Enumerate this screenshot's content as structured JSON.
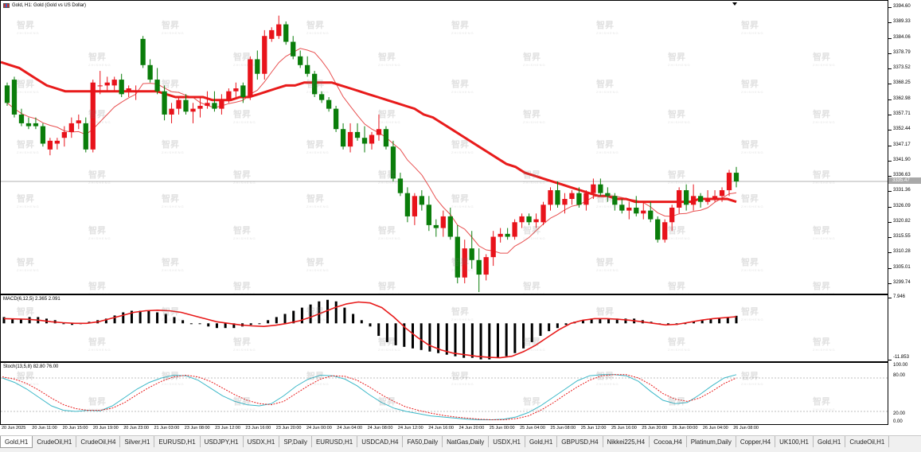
{
  "window": {
    "title": "Gold, H1:  Gold (Gold vs US Dollar)"
  },
  "main_chart": {
    "current_price_label": "3335.47",
    "price_labels": [
      "3394.60",
      "3389.33",
      "3384.06",
      "3378.79",
      "3373.52",
      "3368.25",
      "3362.98",
      "3357.71",
      "3352.44",
      "3347.17",
      "3341.90",
      "3336.63",
      "3331.36",
      "3326.09",
      "3320.82",
      "3315.55",
      "3310.28",
      "3305.01",
      "3299.74"
    ]
  },
  "macd": {
    "label": "MACD(6,12,5) 2.365 2.091",
    "axis_labels": [
      "7.946",
      "-11.853"
    ]
  },
  "stoch": {
    "label": "Stoch(13,5,8) 82.80 76.00",
    "axis_labels": [
      "100.00",
      "80.00",
      "20.00",
      "0.00"
    ]
  },
  "time_axis": [
    "20 Jun 2025",
    "20 Jun 11:00",
    "20 Jun 15:00",
    "20 Jun 19:00",
    "20 Jun 23:00",
    "21 Jun 03:00",
    "23 Jun 08:00",
    "23 Jun 12:00",
    "23 Jun 16:00",
    "23 Jun 20:00",
    "24 Jun 00:00",
    "24 Jun 04:00",
    "24 Jun 08:00",
    "24 Jun 12:00",
    "24 Jun 16:00",
    "24 Jun 20:00",
    "25 Jun 00:00",
    "25 Jun 04:00",
    "25 Jun 08:00",
    "25 Jun 12:00",
    "25 Jun 16:00",
    "25 Jun 20:00",
    "26 Jun 00:00",
    "26 Jun 04:00",
    "26 Jun 08:00"
  ],
  "tabs": [
    "Gold,H1",
    "CrudeOil,H1",
    "CrudeOil,H4",
    "Silver,H1",
    "EURUSD,H1",
    "USDJPY,H1",
    "USDX,H1",
    "SP,Daily",
    "EURUSD,H1",
    "USDCAD,H4",
    "FA50,Daily",
    "NatGas,Daily",
    "USDX,H1",
    "Gold,H1",
    "GBPUSD,H4",
    "Nikkei225,H4",
    "Cocoa,H4",
    "Platinum,Daily",
    "Copper,H4",
    "UK100,H1",
    "Gold,H1",
    "CrudeOil,H1"
  ],
  "watermark_text": "智昇",
  "watermark_sub": "ZHISHENG",
  "colors": {
    "bull": "#e8131b",
    "bear": "#0a7d0a",
    "ma_slow": "#e81b1b",
    "ma_fast": "#e85050",
    "macd_signal": "#e81b1b",
    "stoch_main": "#3cb8c8",
    "stoch_signal": "#e81b1b"
  },
  "chart_data": {
    "type": "candlestick",
    "symbol": "Gold",
    "timeframe": "H1",
    "ylim": [
      3297,
      3396
    ],
    "candles": [
      [
        3368,
        3369,
        3361,
        3362
      ],
      [
        3370,
        3371,
        3357,
        3358
      ],
      [
        3358,
        3360,
        3354,
        3355
      ],
      [
        3355,
        3357,
        3353,
        3354
      ],
      [
        3355,
        3357,
        3353,
        3354
      ],
      [
        3354,
        3355,
        3347,
        3348
      ],
      [
        3346,
        3350,
        3344,
        3349
      ],
      [
        3348,
        3350,
        3346,
        3349
      ],
      [
        3350,
        3354,
        3347,
        3352
      ],
      [
        3352,
        3357,
        3350,
        3355
      ],
      [
        3355,
        3358,
        3353,
        3356
      ],
      [
        3355,
        3357,
        3345,
        3346
      ],
      [
        3346,
        3370,
        3345,
        3369
      ],
      [
        3368,
        3373,
        3365,
        3368
      ],
      [
        3368,
        3371,
        3366,
        3369
      ],
      [
        3368,
        3371,
        3366,
        3370
      ],
      [
        3370,
        3372,
        3364,
        3365
      ],
      [
        3366,
        3368,
        3364,
        3367
      ],
      [
        3366,
        3368,
        3363,
        3366
      ],
      [
        3384,
        3385,
        3374,
        3375
      ],
      [
        3375,
        3377,
        3369,
        3370
      ],
      [
        3370,
        3374,
        3365,
        3366
      ],
      [
        3366,
        3368,
        3356,
        3358
      ],
      [
        3358,
        3362,
        3355,
        3360
      ],
      [
        3360,
        3364,
        3358,
        3363
      ],
      [
        3363,
        3365,
        3358,
        3359
      ],
      [
        3359,
        3362,
        3355,
        3360
      ],
      [
        3360,
        3364,
        3357,
        3361
      ],
      [
        3361,
        3366,
        3360,
        3362
      ],
      [
        3362,
        3366,
        3359,
        3360
      ],
      [
        3360,
        3365,
        3358,
        3363
      ],
      [
        3363,
        3367,
        3362,
        3366
      ],
      [
        3366,
        3369,
        3364,
        3367
      ],
      [
        3368,
        3369,
        3362,
        3364
      ],
      [
        3364,
        3378,
        3363,
        3377
      ],
      [
        3377,
        3380,
        3370,
        3372
      ],
      [
        3372,
        3387,
        3370,
        3385
      ],
      [
        3384,
        3388,
        3383,
        3387
      ],
      [
        3385,
        3392,
        3384,
        3389
      ],
      [
        3389,
        3390,
        3382,
        3383
      ],
      [
        3383,
        3385,
        3377,
        3378
      ],
      [
        3378,
        3380,
        3374,
        3375
      ],
      [
        3375,
        3378,
        3371,
        3372
      ],
      [
        3372,
        3373,
        3364,
        3365
      ],
      [
        3365,
        3366,
        3362,
        3363
      ],
      [
        3363,
        3364,
        3359,
        3360
      ],
      [
        3360,
        3361,
        3352,
        3353
      ],
      [
        3353,
        3355,
        3346,
        3347
      ],
      [
        3347,
        3355,
        3345,
        3352
      ],
      [
        3352,
        3355,
        3349,
        3350
      ],
      [
        3350,
        3354,
        3345,
        3348
      ],
      [
        3348,
        3352,
        3346,
        3351
      ],
      [
        3351,
        3358,
        3349,
        3353
      ],
      [
        3353,
        3354,
        3346,
        3347
      ],
      [
        3347,
        3349,
        3335,
        3336
      ],
      [
        3336,
        3338,
        3330,
        3331
      ],
      [
        3331,
        3333,
        3321,
        3323
      ],
      [
        3323,
        3331,
        3320,
        3330
      ],
      [
        3330,
        3332,
        3325,
        3327
      ],
      [
        3327,
        3330,
        3318,
        3320
      ],
      [
        3320,
        3322,
        3316,
        3319
      ],
      [
        3319,
        3325,
        3316,
        3323
      ],
      [
        3323,
        3326,
        3315,
        3316
      ],
      [
        3316,
        3320,
        3300,
        3302
      ],
      [
        3302,
        3315,
        3300,
        3312
      ],
      [
        3312,
        3318,
        3305,
        3308
      ],
      [
        3308,
        3312,
        3297,
        3303
      ],
      [
        3303,
        3310,
        3301,
        3309
      ],
      [
        3309,
        3318,
        3306,
        3316
      ],
      [
        3316,
        3319,
        3314,
        3317
      ],
      [
        3317,
        3319,
        3315,
        3316
      ],
      [
        3316,
        3322,
        3315,
        3321
      ],
      [
        3321,
        3324,
        3319,
        3323
      ],
      [
        3323,
        3324,
        3320,
        3321
      ],
      [
        3321,
        3324,
        3319,
        3322
      ],
      [
        3321,
        3328,
        3320,
        3327
      ],
      [
        3327,
        3333,
        3325,
        3332
      ],
      [
        3332,
        3335,
        3326,
        3327
      ],
      [
        3327,
        3331,
        3324,
        3329
      ],
      [
        3329,
        3332,
        3327,
        3331
      ],
      [
        3331,
        3333,
        3326,
        3327
      ],
      [
        3327,
        3332,
        3325,
        3331
      ],
      [
        3331,
        3336,
        3329,
        3334
      ],
      [
        3334,
        3336,
        3330,
        3331
      ],
      [
        3331,
        3333,
        3328,
        3330
      ],
      [
        3330,
        3331,
        3325,
        3327
      ],
      [
        3327,
        3329,
        3324,
        3325
      ],
      [
        3325,
        3328,
        3322,
        3326
      ],
      [
        3326,
        3330,
        3323,
        3324
      ],
      [
        3324,
        3328,
        3322,
        3325
      ],
      [
        3325,
        3328,
        3321,
        3322
      ],
      [
        3322,
        3323,
        3314,
        3315
      ],
      [
        3315,
        3322,
        3314,
        3321
      ],
      [
        3321,
        3327,
        3318,
        3326
      ],
      [
        3326,
        3333,
        3324,
        3332
      ],
      [
        3332,
        3334,
        3325,
        3327
      ],
      [
        3327,
        3334,
        3325,
        3330
      ],
      [
        3330,
        3331,
        3326,
        3328
      ],
      [
        3328,
        3332,
        3327,
        3329
      ],
      [
        3329,
        3332,
        3328,
        3330
      ],
      [
        3330,
        3333,
        3328,
        3332
      ],
      [
        3332,
        3339,
        3330,
        3338
      ],
      [
        3338,
        3340,
        3333,
        3335
      ]
    ],
    "ma_slow": [
      3376,
      3375,
      3374,
      3372,
      3370,
      3368,
      3367,
      3366,
      3366,
      3366,
      3366,
      3366,
      3366,
      3366,
      3366,
      3366,
      3366,
      3366,
      3365,
      3364,
      3364,
      3364,
      3364,
      3363,
      3363,
      3363,
      3364,
      3364,
      3365,
      3366,
      3367,
      3368,
      3368,
      3369,
      3369,
      3369,
      3369,
      3368,
      3367,
      3366,
      3365,
      3364,
      3363,
      3362,
      3361,
      3360,
      3358,
      3357,
      3355,
      3353,
      3351,
      3349,
      3347,
      3345,
      3343,
      3341,
      3340,
      3338,
      3337,
      3336,
      3335,
      3334,
      3333,
      3332,
      3331,
      3330,
      3330,
      3329,
      3329,
      3328,
      3328,
      3328,
      3328,
      3328,
      3328,
      3328,
      3329,
      3329,
      3329,
      3329,
      3328
    ],
    "macd_hist": [
      2,
      1.5,
      1.5,
      2,
      2,
      1.5,
      1,
      0,
      -0.5,
      0,
      0.5,
      1,
      1.5,
      2.5,
      3.5,
      4,
      4,
      4,
      3.5,
      3,
      2,
      1,
      0,
      0,
      -1,
      -1.5,
      -1.5,
      -1.5,
      -1,
      -0.5,
      0,
      1,
      2,
      3,
      4,
      5,
      6,
      7,
      7.5,
      7,
      5,
      3,
      1,
      -1,
      -4,
      -6,
      -7,
      -7.5,
      -8,
      -8.5,
      -9,
      -9.5,
      -10,
      -10.5,
      -11,
      -11,
      -11.5,
      -11.5,
      -11,
      -10.5,
      -9.5,
      -8,
      -6,
      -4,
      -2.5,
      -1.5,
      -0.5,
      0.5,
      1,
      1.5,
      1.5,
      1.5,
      1.5,
      1.5,
      1.5,
      1,
      0.5,
      0,
      -0.5,
      -0.5,
      0,
      0.5,
      1,
      1.5,
      1.5,
      2,
      2.4
    ],
    "macd_signal": [
      1.5,
      1.4,
      1.3,
      1.0,
      0.5,
      0.2,
      0,
      0,
      0.5,
      1.5,
      2.5,
      3.5,
      4,
      4.2,
      4,
      3.5,
      2.5,
      1.5,
      0.5,
      0,
      -0.5,
      -0.8,
      -1,
      -0.6,
      0,
      0.8,
      2,
      3.5,
      5,
      6.2,
      6.8,
      6.5,
      5,
      2,
      -1.5,
      -4.5,
      -7,
      -8.5,
      -9.5,
      -10,
      -10.5,
      -10.8,
      -11,
      -10.5,
      -9,
      -7,
      -4.5,
      -2,
      0,
      1,
      1.5,
      1.5,
      1.3,
      1,
      0.5,
      0,
      -0.5,
      -0.3,
      0.3,
      1,
      1.5,
      1.8,
      2.1
    ],
    "stoch_main": [
      80,
      72,
      60,
      45,
      30,
      22,
      20,
      22,
      21,
      30,
      45,
      60,
      72,
      80,
      85,
      84,
      76,
      62,
      48,
      38,
      32,
      30,
      34,
      48,
      65,
      78,
      85,
      84,
      78,
      66,
      50,
      36,
      26,
      20,
      16,
      12,
      10,
      8,
      6,
      5,
      5,
      6,
      10,
      18,
      30,
      45,
      60,
      75,
      84,
      86,
      86,
      84,
      74,
      56,
      40,
      34,
      36,
      50,
      66,
      80,
      86
    ],
    "stoch_signal": [
      82,
      78,
      70,
      58,
      44,
      32,
      25,
      22,
      22,
      26,
      36,
      50,
      63,
      74,
      82,
      85,
      82,
      74,
      62,
      50,
      40,
      34,
      32,
      38,
      52,
      66,
      78,
      84,
      83,
      76,
      64,
      50,
      38,
      28,
      22,
      17,
      13,
      10,
      8,
      6,
      5,
      5,
      7,
      12,
      22,
      35,
      50,
      64,
      76,
      84,
      86,
      86,
      80,
      68,
      52,
      42,
      38,
      44,
      56,
      70,
      80
    ]
  }
}
